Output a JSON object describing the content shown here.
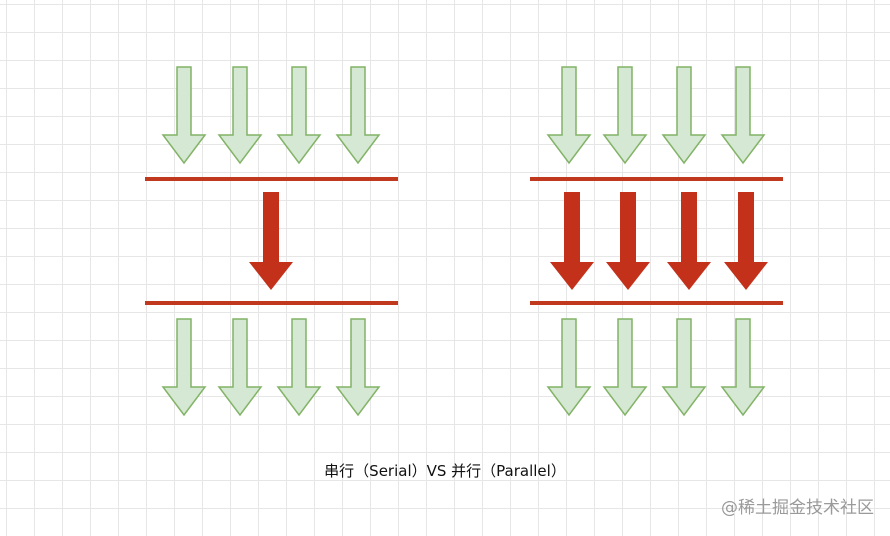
{
  "caption": "串行（Serial）VS 并行（Parallel）",
  "watermark": "@稀土掘金技术社区",
  "colors": {
    "input_arrow_fill": "#d5e8d4",
    "input_arrow_stroke": "#82b366",
    "process_arrow_fill": "#c3311b",
    "divider_line": "#c0391f",
    "grid": "#e6e6e6"
  },
  "diagrams": [
    {
      "id": "serial",
      "incoming_arrows": 4,
      "processing_arrows": 1,
      "outgoing_arrows": 4
    },
    {
      "id": "parallel",
      "incoming_arrows": 4,
      "processing_arrows": 4,
      "outgoing_arrows": 4
    }
  ]
}
